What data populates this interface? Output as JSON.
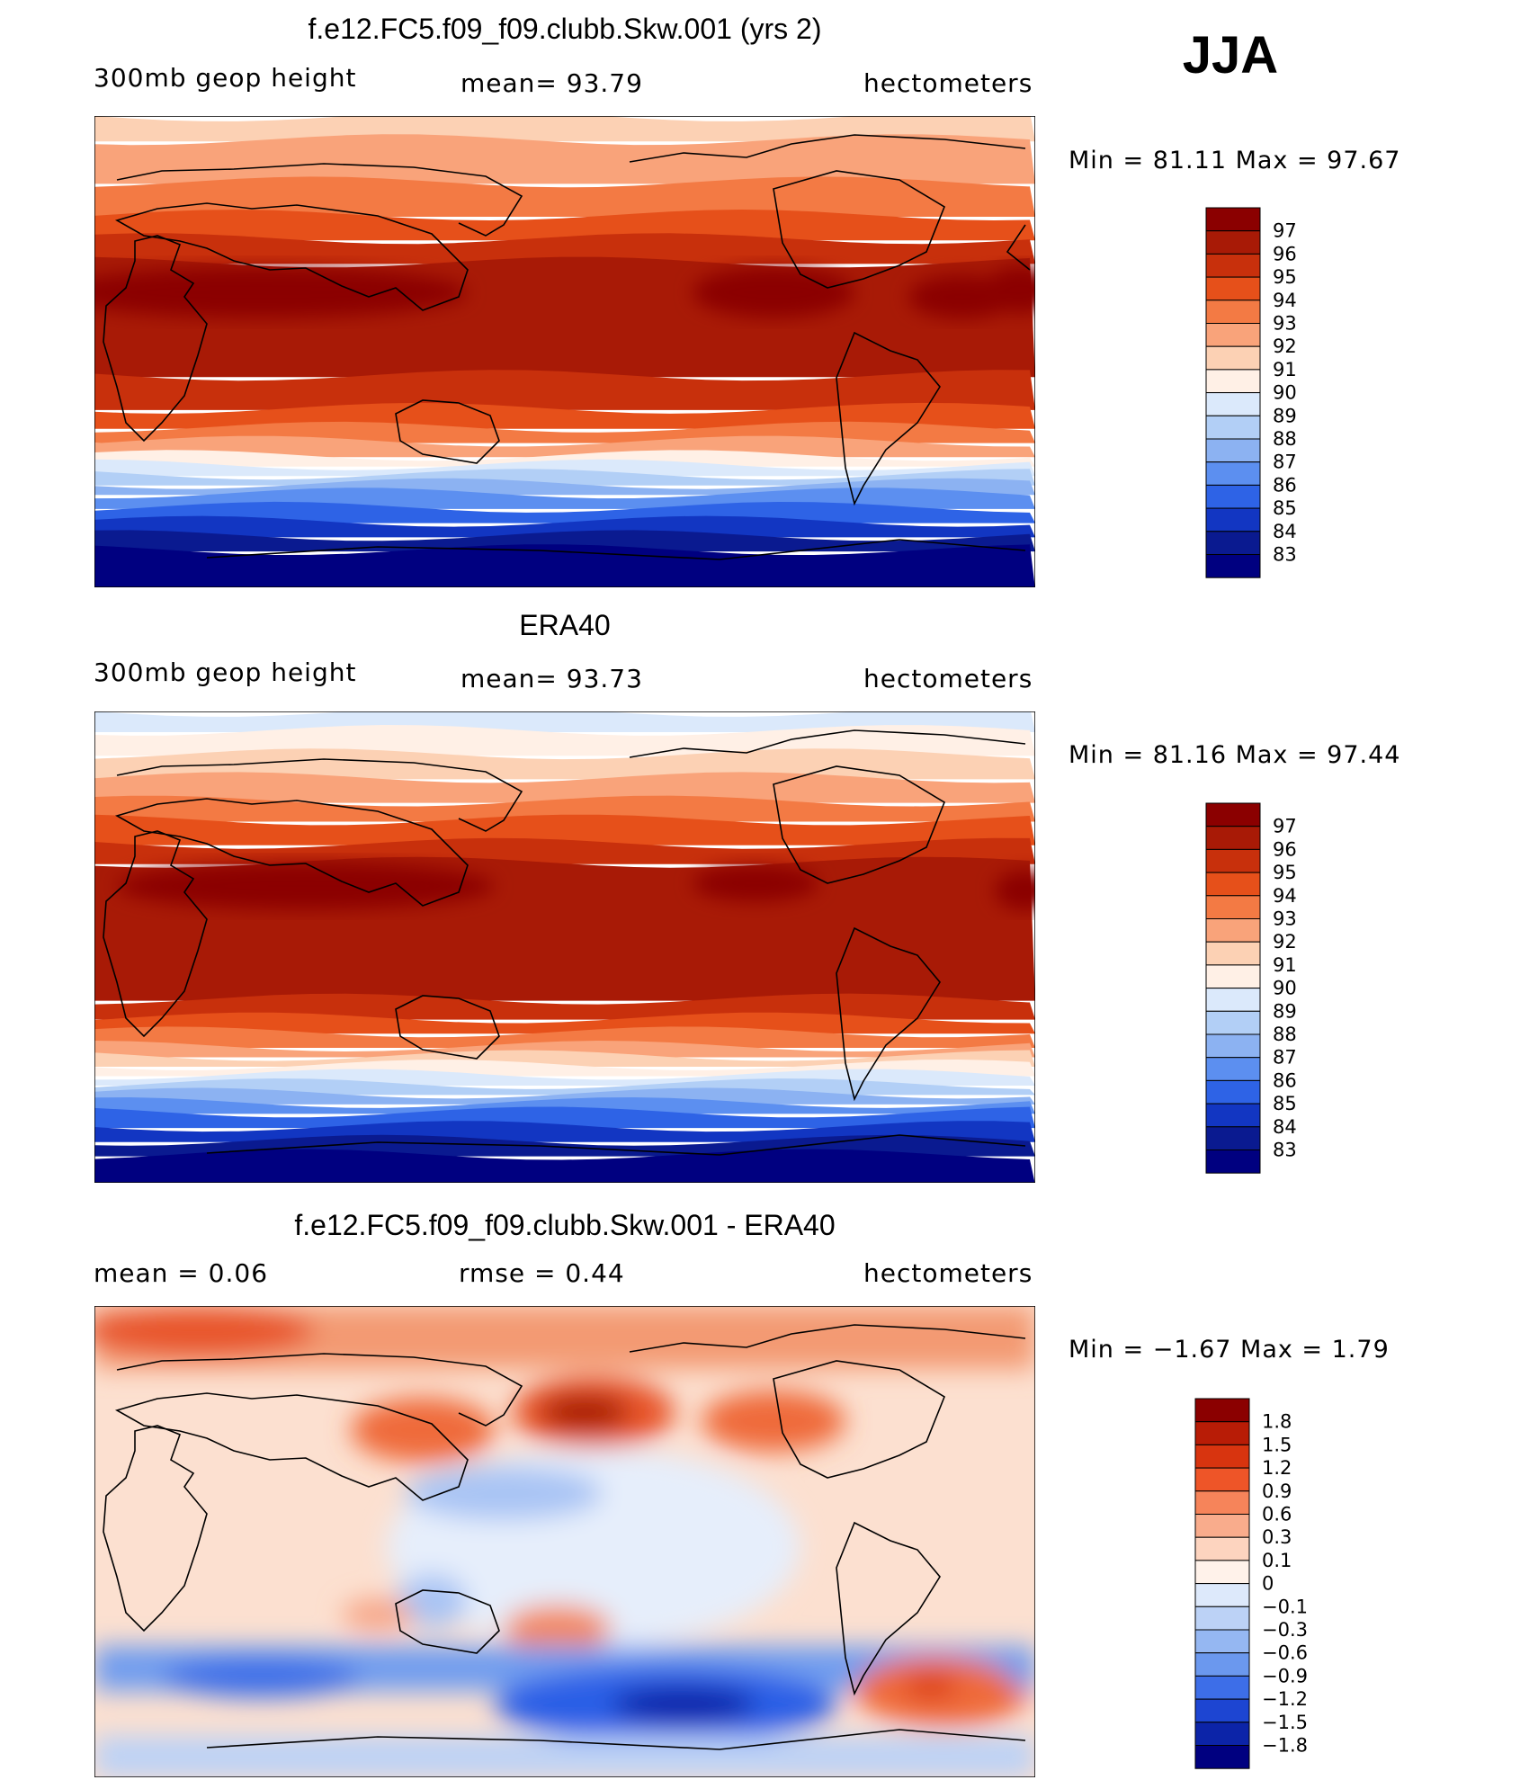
{
  "season_label": "JJA",
  "panels": [
    {
      "title": "f.e12.FC5.f09_f09.clubb.Skw.001 (yrs 2)",
      "left_text": "300mb  geop  height",
      "center_text": "mean=   93.79",
      "right_text": "hectometers",
      "minmax_text": "Min  =    81.11  Max  =    97.67",
      "levels": [
        "97",
        "96",
        "95",
        "94",
        "93",
        "92",
        "91",
        "90",
        "89",
        "88",
        "87",
        "86",
        "85",
        "84",
        "83"
      ],
      "colors": [
        "#8b0000",
        "#a81a06",
        "#c8300c",
        "#e6501a",
        "#f37a44",
        "#f9a37a",
        "#fcd1b4",
        "#fff0e6",
        "#dbe9fb",
        "#b2cff6",
        "#8cb2f2",
        "#5c8ff0",
        "#2e63e6",
        "#1236c2",
        "#0a1a90",
        "#000080"
      ]
    },
    {
      "title": "ERA40",
      "left_text": "300mb  geop  height",
      "center_text": "mean=   93.73",
      "right_text": "hectometers",
      "minmax_text": "Min  =    81.16  Max  =    97.44",
      "levels": [
        "97",
        "96",
        "95",
        "94",
        "93",
        "92",
        "91",
        "90",
        "89",
        "88",
        "87",
        "86",
        "85",
        "84",
        "83"
      ],
      "colors": [
        "#8b0000",
        "#a81a06",
        "#c8300c",
        "#e6501a",
        "#f37a44",
        "#f9a37a",
        "#fcd1b4",
        "#fff0e6",
        "#dbe9fb",
        "#b2cff6",
        "#8cb2f2",
        "#5c8ff0",
        "#2e63e6",
        "#1236c2",
        "#0a1a90",
        "#000080"
      ]
    },
    {
      "title": "f.e12.FC5.f09_f09.clubb.Skw.001 - ERA40",
      "left_text": "mean  =     0.06",
      "center_text": "rmse  =     0.44",
      "right_text": "hectometers",
      "minmax_text": "Min  =   −1.67  Max  =      1.79",
      "levels": [
        "1.8",
        "1.5",
        "1.2",
        "0.9",
        "0.6",
        "0.3",
        "0.1",
        "0",
        "−0.1",
        "−0.3",
        "−0.6",
        "−0.9",
        "−1.2",
        "−1.5",
        "−1.8"
      ],
      "colors": [
        "#8b0000",
        "#b81c06",
        "#d8340f",
        "#ee5528",
        "#f6845a",
        "#f9ac8c",
        "#fdd4bf",
        "#fff2ea",
        "#dde9fb",
        "#bcd2f6",
        "#95b7f2",
        "#6b98ee",
        "#3d6ee8",
        "#1d45d2",
        "#0c24a8",
        "#000080"
      ]
    }
  ],
  "chart_data": [
    {
      "type": "heatmap",
      "title": "f.e12.FC5.f09_f09.clubb.Skw.001 (yrs 2)",
      "variable": "300mb  geop  height",
      "units": "hectometers",
      "mean": 93.79,
      "min": 81.11,
      "max": 97.67,
      "contour_levels": [
        83,
        84,
        85,
        86,
        87,
        88,
        89,
        90,
        91,
        92,
        93,
        94,
        95,
        96,
        97
      ]
    },
    {
      "type": "heatmap",
      "title": "ERA40",
      "variable": "300mb  geop  height",
      "units": "hectometers",
      "mean": 93.73,
      "min": 81.16,
      "max": 97.44,
      "contour_levels": [
        83,
        84,
        85,
        86,
        87,
        88,
        89,
        90,
        91,
        92,
        93,
        94,
        95,
        96,
        97
      ]
    },
    {
      "type": "heatmap",
      "title": "f.e12.FC5.f09_f09.clubb.Skw.001 - ERA40",
      "units": "hectometers",
      "mean": 0.06,
      "rmse": 0.44,
      "min": -1.67,
      "max": 1.79,
      "contour_levels": [
        -1.8,
        -1.5,
        -1.2,
        -0.9,
        -0.6,
        -0.3,
        -0.1,
        0,
        0.1,
        0.3,
        0.6,
        0.9,
        1.2,
        1.5,
        1.8
      ]
    }
  ]
}
